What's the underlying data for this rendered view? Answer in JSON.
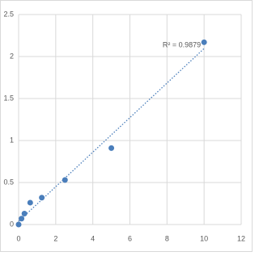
{
  "chart_data": {
    "type": "scatter",
    "annotation": "R² = 0.9879",
    "x": [
      0,
      0.156,
      0.3125,
      0.625,
      1.25,
      2.5,
      5,
      10
    ],
    "series": [
      {
        "color": "#4a7ebb",
        "values": [
          0.0,
          0.07,
          0.13,
          0.26,
          0.32,
          0.53,
          0.91,
          2.17
        ]
      }
    ],
    "trendline": {
      "type": "linear",
      "color": "#4a7ebb",
      "style": "dotted"
    },
    "xlim": [
      0,
      12
    ],
    "xticks": [
      0,
      2,
      4,
      6,
      8,
      10,
      12
    ],
    "ylim": [
      0,
      2.5
    ],
    "yticks": [
      0,
      0.5,
      1,
      1.5,
      2,
      2.5
    ],
    "grid": true
  }
}
